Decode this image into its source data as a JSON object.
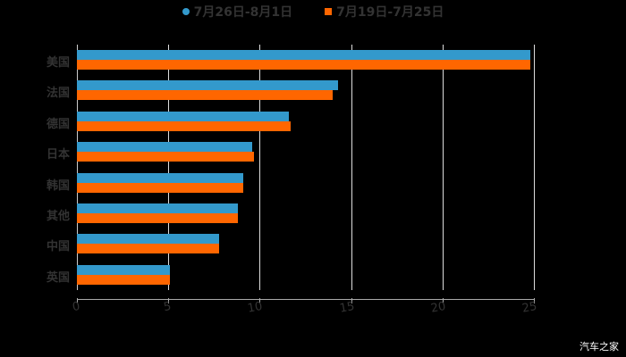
{
  "chart_data": {
    "type": "bar",
    "orientation": "horizontal",
    "title": "",
    "xlabel": "",
    "ylabel": "",
    "categories": [
      "美国",
      "法国",
      "德国",
      "日本",
      "韩国",
      "其他",
      "中国",
      "英国"
    ],
    "series": [
      {
        "name": "7月26日-8月1日",
        "color": "#3399cc",
        "values": [
          24.8,
          14.3,
          11.6,
          9.6,
          9.1,
          8.8,
          7.8,
          5.1
        ]
      },
      {
        "name": "7月19日-7月25日",
        "color": "#ff6600",
        "values": [
          24.8,
          14.0,
          11.7,
          9.7,
          9.1,
          8.8,
          7.8,
          5.1
        ]
      }
    ],
    "xlim": [
      0,
      25
    ],
    "xticks": [
      "0",
      "5",
      "10",
      "15",
      "20",
      "25"
    ],
    "grid": true,
    "legend_position": "top"
  },
  "legend": [
    {
      "label": "7月26日-8月1日",
      "color": "#3399cc",
      "marker": "circle"
    },
    {
      "label": "7月19日-7月25日",
      "color": "#ff6600",
      "marker": "square"
    }
  ],
  "watermark": "汽车之家"
}
